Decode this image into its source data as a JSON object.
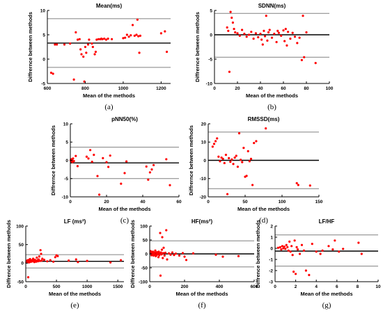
{
  "figure": {
    "panels": [
      {
        "caption": "(a)"
      },
      {
        "caption": "(b)"
      },
      {
        "caption": "(c)"
      },
      {
        "caption": "(d)"
      },
      {
        "caption": "(e)"
      },
      {
        "caption": "(f)"
      },
      {
        "caption": "(g)"
      }
    ]
  },
  "colors": {
    "points": "#ff0000",
    "mean_line": "#000000",
    "limit_lines": "#808080",
    "axes": "#000000"
  },
  "chart_data": [
    {
      "type": "scatter",
      "title": "Mean(ms)",
      "caption": "(a)",
      "xlabel": "Mean of the methods",
      "ylabel": "Diffrernce between methods",
      "xlim": [
        600,
        1250
      ],
      "ylim": [
        -5,
        10
      ],
      "xticks": [
        600,
        800,
        1000,
        1200
      ],
      "xtick_labels": [
        "600",
        "800",
        "1000",
        "1200"
      ],
      "yticks": [
        -5,
        0,
        5,
        10
      ],
      "ytick_labels": [
        "-5",
        "0",
        "5",
        "10"
      ],
      "mean_line": 3.3,
      "upper_limit": 8.3,
      "lower_limit": -1.7,
      "points": [
        [
          620,
          -2.8
        ],
        [
          630,
          -3.0
        ],
        [
          640,
          3.0
        ],
        [
          650,
          3.0
        ],
        [
          690,
          3.0
        ],
        [
          720,
          3.2
        ],
        [
          740,
          -4.2
        ],
        [
          750,
          5.5
        ],
        [
          760,
          4.0
        ],
        [
          770,
          4.1
        ],
        [
          775,
          2.0
        ],
        [
          780,
          1.0
        ],
        [
          790,
          0.5
        ],
        [
          795,
          -4.6
        ],
        [
          800,
          2.5
        ],
        [
          805,
          1.3
        ],
        [
          815,
          3.0
        ],
        [
          820,
          4.0
        ],
        [
          835,
          3.2
        ],
        [
          840,
          2.5
        ],
        [
          850,
          1.0
        ],
        [
          855,
          1.5
        ],
        [
          860,
          4.0
        ],
        [
          870,
          4.1
        ],
        [
          880,
          4.1
        ],
        [
          885,
          4.2
        ],
        [
          890,
          4.1
        ],
        [
          900,
          4.2
        ],
        [
          910,
          4.0
        ],
        [
          920,
          4.2
        ],
        [
          940,
          4.1
        ],
        [
          1000,
          4.3
        ],
        [
          1010,
          4.4
        ],
        [
          1020,
          5.0
        ],
        [
          1030,
          4.6
        ],
        [
          1040,
          4.9
        ],
        [
          1050,
          7.0
        ],
        [
          1060,
          4.8
        ],
        [
          1070,
          5.0
        ],
        [
          1075,
          8.1
        ],
        [
          1080,
          4.7
        ],
        [
          1085,
          1.3
        ],
        [
          1090,
          4.8
        ],
        [
          1200,
          5.3
        ],
        [
          1220,
          5.7
        ],
        [
          1230,
          1.5
        ]
      ]
    },
    {
      "type": "scatter",
      "title": "SDNN(ms)",
      "caption": "(b)",
      "xlabel": "Mean of the methods",
      "ylabel": "Diffrernce between methods",
      "xlim": [
        0,
        100
      ],
      "ylim": [
        -10,
        5
      ],
      "xticks": [
        0,
        20,
        40,
        60,
        80,
        100
      ],
      "xtick_labels": [
        "0",
        "20",
        "40",
        "60",
        "80",
        "100"
      ],
      "yticks": [
        -10,
        -5,
        0,
        5
      ],
      "ytick_labels": [
        "-10",
        "-5",
        "0",
        "5"
      ],
      "mean_line": 0,
      "upper_limit": 4.4,
      "lower_limit": -4.6,
      "points": [
        [
          11,
          1.5
        ],
        [
          12,
          0.8
        ],
        [
          13,
          -7.6
        ],
        [
          14,
          4.7
        ],
        [
          15,
          3.5
        ],
        [
          16,
          2.5
        ],
        [
          17,
          1.2
        ],
        [
          18,
          0.5
        ],
        [
          20,
          0.3
        ],
        [
          22,
          -0.2
        ],
        [
          24,
          1.0
        ],
        [
          26,
          0.2
        ],
        [
          28,
          -0.4
        ],
        [
          30,
          0.0
        ],
        [
          32,
          0.6
        ],
        [
          34,
          -0.8
        ],
        [
          36,
          0.3
        ],
        [
          38,
          -0.5
        ],
        [
          40,
          0.2
        ],
        [
          41,
          -1.0
        ],
        [
          42,
          -2.0
        ],
        [
          43,
          0.8
        ],
        [
          44,
          -0.3
        ],
        [
          45,
          3.9
        ],
        [
          46,
          -1.2
        ],
        [
          47,
          0.5
        ],
        [
          48,
          1.0
        ],
        [
          50,
          -0.6
        ],
        [
          52,
          0.2
        ],
        [
          54,
          -1.5
        ],
        [
          55,
          0.8
        ],
        [
          56,
          0.4
        ],
        [
          58,
          -0.2
        ],
        [
          60,
          0.9
        ],
        [
          61,
          -1.3
        ],
        [
          62,
          1.2
        ],
        [
          63,
          -2.2
        ],
        [
          64,
          0.6
        ],
        [
          66,
          -0.8
        ],
        [
          68,
          0.4
        ],
        [
          70,
          -0.4
        ],
        [
          72,
          -1.7
        ],
        [
          74,
          -0.6
        ],
        [
          76,
          -5.2
        ],
        [
          77,
          3.9
        ],
        [
          78,
          -4.6
        ],
        [
          80,
          0.5
        ],
        [
          88,
          -5.8
        ]
      ]
    },
    {
      "type": "scatter",
      "title": "pNN50(%)",
      "caption": "(c)",
      "xlabel": "Mean of the methods",
      "ylabel": "Diffrernce between methods",
      "xlim": [
        0,
        60
      ],
      "ylim": [
        -10,
        10
      ],
      "xticks": [
        0,
        20,
        40,
        60
      ],
      "xtick_labels": [
        "0",
        "20",
        "40",
        "60"
      ],
      "yticks": [
        -10,
        -5,
        0,
        5,
        10
      ],
      "ytick_labels": [
        "-10",
        "-5",
        "0",
        "5",
        "10"
      ],
      "mean_line": -0.7,
      "upper_limit": 3.6,
      "lower_limit": -5.0,
      "points": [
        [
          0.2,
          0.0
        ],
        [
          0.5,
          0.3
        ],
        [
          0.8,
          -0.3
        ],
        [
          1.0,
          0.2
        ],
        [
          1.2,
          -0.5
        ],
        [
          1.5,
          0.5
        ],
        [
          2.0,
          -0.2
        ],
        [
          3,
          1.2
        ],
        [
          4,
          -1.6
        ],
        [
          9,
          1.0
        ],
        [
          10,
          0.5
        ],
        [
          11,
          2.8
        ],
        [
          12,
          -0.4
        ],
        [
          13,
          1.5
        ],
        [
          15,
          -4.3
        ],
        [
          16,
          -9.4
        ],
        [
          18,
          0.6
        ],
        [
          20,
          -0.5
        ],
        [
          21,
          -1.8
        ],
        [
          22,
          1.3
        ],
        [
          28,
          -6.4
        ],
        [
          30,
          -3.5
        ],
        [
          31,
          -0.3
        ],
        [
          42,
          -1.7
        ],
        [
          43,
          -5.3
        ],
        [
          44,
          -3.3
        ],
        [
          45,
          -2.5
        ],
        [
          46,
          -1.3
        ],
        [
          53,
          0.3
        ],
        [
          55,
          -6.8
        ]
      ]
    },
    {
      "type": "scatter",
      "title": "RMSSD(ms)",
      "caption": "(d)",
      "xlabel": "Mean of the methods",
      "ylabel": "Diffrernce between methods",
      "xlim": [
        0,
        150
      ],
      "ylim": [
        -20,
        20
      ],
      "xticks": [
        0,
        50,
        100,
        150
      ],
      "xtick_labels": [
        "0",
        "50",
        "100",
        "150"
      ],
      "yticks": [
        -20,
        -10,
        0,
        10,
        20
      ],
      "ytick_labels": [
        "-20",
        "-10",
        "0",
        "10",
        "20"
      ],
      "mean_line": 0,
      "upper_limit": 15.5,
      "lower_limit": -15.5,
      "points": [
        [
          6,
          7.5
        ],
        [
          8,
          9.0
        ],
        [
          10,
          10.5
        ],
        [
          12,
          12.0
        ],
        [
          14,
          2.0
        ],
        [
          16,
          -0.5
        ],
        [
          18,
          1.5
        ],
        [
          20,
          0.8
        ],
        [
          22,
          -1.5
        ],
        [
          24,
          3.0
        ],
        [
          26,
          -18.5
        ],
        [
          28,
          1.2
        ],
        [
          30,
          -0.8
        ],
        [
          32,
          0.5
        ],
        [
          34,
          -2.0
        ],
        [
          36,
          1.5
        ],
        [
          38,
          2.5
        ],
        [
          40,
          -3.5
        ],
        [
          42,
          14.8
        ],
        [
          44,
          0.3
        ],
        [
          46,
          -1.0
        ],
        [
          48,
          6.8
        ],
        [
          50,
          -9.0
        ],
        [
          52,
          -8.5
        ],
        [
          54,
          5.0
        ],
        [
          56,
          -0.5
        ],
        [
          58,
          0.8
        ],
        [
          60,
          -13.5
        ],
        [
          62,
          9.5
        ],
        [
          65,
          10.5
        ],
        [
          78,
          17.5
        ],
        [
          120,
          -12.5
        ],
        [
          122,
          -13.5
        ],
        [
          138,
          -13.8
        ]
      ]
    },
    {
      "type": "scatter",
      "title": "LF (ms²)",
      "caption": "(e)",
      "xlabel": "Mean of the methods",
      "ylabel": "Diffrence between methods",
      "xlim": [
        0,
        1600
      ],
      "ylim": [
        -50,
        100
      ],
      "xticks": [
        0,
        500,
        1000,
        1500
      ],
      "xtick_labels": [
        "0",
        "500",
        "1000",
        "1500"
      ],
      "yticks": [
        -50,
        0,
        50,
        100
      ],
      "ytick_labels": [
        "-50",
        "0",
        "50",
        "100"
      ],
      "mean_line": 5.0,
      "upper_limit": 23.0,
      "lower_limit": -13.0,
      "points": [
        [
          10,
          2.0
        ],
        [
          15,
          4.0
        ],
        [
          20,
          6.0
        ],
        [
          25,
          3.0
        ],
        [
          30,
          8.0
        ],
        [
          35,
          5.0
        ],
        [
          40,
          -38.0
        ],
        [
          45,
          7.0
        ],
        [
          50,
          2.0
        ],
        [
          55,
          9.0
        ],
        [
          60,
          5.0
        ],
        [
          65,
          3.0
        ],
        [
          70,
          11.0
        ],
        [
          80,
          6.0
        ],
        [
          90,
          4.0
        ],
        [
          100,
          8.0
        ],
        [
          110,
          5.0
        ],
        [
          120,
          12.0
        ],
        [
          130,
          7.0
        ],
        [
          140,
          3.0
        ],
        [
          150,
          9.0
        ],
        [
          160,
          6.0
        ],
        [
          170,
          4.0
        ],
        [
          180,
          15.0
        ],
        [
          190,
          8.0
        ],
        [
          200,
          5.0
        ],
        [
          210,
          10.0
        ],
        [
          220,
          18.0
        ],
        [
          230,
          6.0
        ],
        [
          240,
          35.0
        ],
        [
          250,
          25.0
        ],
        [
          260,
          7.0
        ],
        [
          270,
          12.0
        ],
        [
          300,
          9.0
        ],
        [
          350,
          5.0
        ],
        [
          400,
          8.0
        ],
        [
          450,
          4.0
        ],
        [
          480,
          16.0
        ],
        [
          500,
          21.0
        ],
        [
          520,
          19.0
        ],
        [
          700,
          7.0
        ],
        [
          820,
          10.0
        ],
        [
          850,
          3.0
        ],
        [
          1000,
          6.0
        ],
        [
          1380,
          2.0
        ],
        [
          1550,
          8.0
        ]
      ]
    },
    {
      "type": "scatter",
      "title": "HF(ms²)",
      "caption": "(f)",
      "xlabel": "Mean of the methods",
      "ylabel": "Diffrence between methods",
      "xlim": [
        0,
        600
      ],
      "ylim": [
        -100,
        100
      ],
      "xticks": [
        0,
        200,
        400,
        600
      ],
      "xtick_labels": [
        "0",
        "200",
        "400",
        "600"
      ],
      "yticks": [
        -100,
        -50,
        0,
        50,
        100
      ],
      "ytick_labels": [
        "-100",
        "-50",
        "0",
        "50",
        "100"
      ],
      "mean_line": 0,
      "upper_limit": 47.0,
      "lower_limit": -47.0,
      "points": [
        [
          5,
          10.0
        ],
        [
          8,
          4.0
        ],
        [
          10,
          -5.0
        ],
        [
          12,
          6.0
        ],
        [
          15,
          -2.0
        ],
        [
          18,
          8.0
        ],
        [
          20,
          3.0
        ],
        [
          22,
          -6.0
        ],
        [
          25,
          2.0
        ],
        [
          28,
          5.0
        ],
        [
          30,
          -3.0
        ],
        [
          32,
          12.0
        ],
        [
          35,
          -8.0
        ],
        [
          38,
          4.0
        ],
        [
          40,
          -4.0
        ],
        [
          42,
          6.0
        ],
        [
          45,
          -1.0
        ],
        [
          48,
          3.0
        ],
        [
          50,
          -12.0
        ],
        [
          52,
          8.0
        ],
        [
          55,
          -5.0
        ],
        [
          58,
          2.0
        ],
        [
          60,
          75.0
        ],
        [
          62,
          -78.0
        ],
        [
          65,
          5.0
        ],
        [
          68,
          -2.0
        ],
        [
          70,
          15.0
        ],
        [
          72,
          60.0
        ],
        [
          75,
          -15.0
        ],
        [
          78,
          3.0
        ],
        [
          80,
          22.0
        ],
        [
          85,
          -6.0
        ],
        [
          90,
          4.0
        ],
        [
          95,
          85.0
        ],
        [
          100,
          -20.0
        ],
        [
          110,
          2.0
        ],
        [
          120,
          -3.0
        ],
        [
          130,
          5.0
        ],
        [
          140,
          -4.0
        ],
        [
          150,
          1.0
        ],
        [
          170,
          -6.0
        ],
        [
          190,
          3.0
        ],
        [
          200,
          -10.0
        ],
        [
          210,
          -22.0
        ],
        [
          250,
          2.0
        ],
        [
          380,
          -3.0
        ],
        [
          420,
          -10.0
        ],
        [
          510,
          -8.0
        ]
      ]
    },
    {
      "type": "scatter",
      "title": "LF/HF",
      "caption": "(g)",
      "xlabel": "Mean of the methods",
      "ylabel": "Diffrence between methods",
      "xlim": [
        0,
        10
      ],
      "ylim": [
        -3,
        2
      ],
      "xticks": [
        0,
        2,
        4,
        6,
        8,
        10
      ],
      "xtick_labels": [
        "0",
        "2",
        "4",
        "6",
        "8",
        "10"
      ],
      "yticks": [
        -3,
        -2,
        -1,
        0,
        1,
        2
      ],
      "ytick_labels": [
        "-3",
        "-2",
        "-1",
        "0",
        "1",
        "2"
      ],
      "mean_line": -0.25,
      "upper_limit": 1.2,
      "lower_limit": -1.6,
      "points": [
        [
          0.3,
          0.05
        ],
        [
          0.5,
          0.1
        ],
        [
          0.6,
          -0.1
        ],
        [
          0.7,
          0.2
        ],
        [
          0.8,
          0.0
        ],
        [
          0.9,
          0.15
        ],
        [
          1.0,
          -0.05
        ],
        [
          1.1,
          0.3
        ],
        [
          1.2,
          0.1
        ],
        [
          1.3,
          -0.2
        ],
        [
          1.4,
          0.6
        ],
        [
          1.5,
          -0.3
        ],
        [
          1.6,
          0.2
        ],
        [
          1.7,
          -0.6
        ],
        [
          1.8,
          -2.1
        ],
        [
          1.9,
          0.7
        ],
        [
          2.0,
          -2.3
        ],
        [
          2.1,
          0.1
        ],
        [
          2.2,
          -0.1
        ],
        [
          2.4,
          -0.5
        ],
        [
          2.6,
          0.3
        ],
        [
          2.8,
          -0.2
        ],
        [
          3.0,
          -2.0
        ],
        [
          3.3,
          -2.4
        ],
        [
          3.6,
          0.4
        ],
        [
          4.0,
          -0.3
        ],
        [
          4.4,
          -0.5
        ],
        [
          4.6,
          -0.2
        ],
        [
          5.2,
          0.2
        ],
        [
          5.6,
          -0.1
        ],
        [
          5.8,
          0.7
        ],
        [
          6.2,
          -0.3
        ],
        [
          6.6,
          -0.05
        ],
        [
          8.1,
          0.5
        ],
        [
          8.4,
          -0.5
        ]
      ]
    }
  ]
}
